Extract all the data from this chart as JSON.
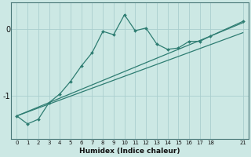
{
  "xlabel": "Humidex (Indice chaleur)",
  "ylabel": "",
  "background_color": "#cce8e4",
  "grid_color": "#aacece",
  "line_color": "#2e7d72",
  "xlim": [
    -0.5,
    21.5
  ],
  "ylim": [
    -1.65,
    0.4
  ],
  "yticks": [
    0,
    -1
  ],
  "xticks": [
    0,
    1,
    2,
    3,
    4,
    5,
    6,
    7,
    8,
    9,
    10,
    11,
    12,
    13,
    14,
    15,
    16,
    17,
    18,
    21
  ],
  "main_line_x": [
    0,
    1,
    2,
    3,
    4,
    5,
    6,
    7,
    8,
    9,
    10,
    11,
    12,
    13,
    14,
    15,
    16,
    17,
    18,
    21
  ],
  "main_line_y": [
    -1.3,
    -1.42,
    -1.35,
    -1.1,
    -0.97,
    -0.78,
    -0.55,
    -0.35,
    -0.03,
    -0.08,
    0.22,
    -0.02,
    0.02,
    -0.22,
    -0.3,
    -0.28,
    -0.18,
    -0.18,
    -0.1,
    0.12
  ],
  "line2_x": [
    0,
    21
  ],
  "line2_y": [
    -1.3,
    -0.05
  ],
  "line3_x": [
    0,
    21
  ],
  "line3_y": [
    -1.3,
    0.1
  ]
}
